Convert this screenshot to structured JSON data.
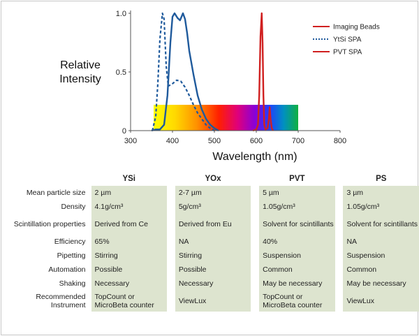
{
  "chart_data": {
    "type": "line",
    "xlabel": "Wavelength (nm)",
    "ylabel": [
      "Relative",
      "Intensity"
    ],
    "xlim": [
      300,
      800
    ],
    "ylim": [
      0,
      1.0
    ],
    "xticks": [
      "300",
      "400",
      "500",
      "600",
      "700",
      "800"
    ],
    "yticks": [
      "0",
      "0.5",
      "1.0"
    ],
    "legend_position": "top-right",
    "legend": [
      {
        "label": "Imaging Beads",
        "color": "#d02020",
        "style": "solid"
      },
      {
        "label": "YtSi SPA",
        "color": "#1f5a9c",
        "style": "dotted"
      },
      {
        "label": "PVT SPA",
        "color": "#d02020",
        "style": "solid"
      }
    ],
    "spectrum_band": {
      "x_range": [
        355,
        700
      ],
      "y_range": [
        0,
        0.22
      ]
    },
    "series": [
      {
        "color": "#d02020",
        "style": "solid",
        "points": [
          [
            592,
            0
          ],
          [
            600,
            0.01
          ],
          [
            604,
            0.05
          ],
          [
            607,
            0.3
          ],
          [
            610,
            0.8
          ],
          [
            613,
            1.0
          ],
          [
            615,
            0.75
          ],
          [
            617,
            0.3
          ],
          [
            619,
            0.05
          ],
          [
            622,
            0.01
          ],
          [
            627,
            0.02
          ],
          [
            630,
            0.1
          ],
          [
            632,
            0.2
          ],
          [
            634,
            0.1
          ],
          [
            637,
            0.02
          ],
          [
            640,
            0
          ]
        ]
      },
      {
        "color": "#1f5a9c",
        "style": "dashed",
        "points": [
          [
            352,
            0
          ],
          [
            360,
            0.12
          ],
          [
            365,
            0.4
          ],
          [
            370,
            0.78
          ],
          [
            376,
            1.0
          ],
          [
            380,
            0.95
          ],
          [
            385,
            0.55
          ],
          [
            390,
            0.38
          ],
          [
            400,
            0.4
          ],
          [
            410,
            0.43
          ],
          [
            420,
            0.42
          ],
          [
            430,
            0.37
          ],
          [
            440,
            0.3
          ],
          [
            450,
            0.22
          ],
          [
            460,
            0.15
          ],
          [
            470,
            0.1
          ],
          [
            480,
            0.05
          ],
          [
            490,
            0.02
          ],
          [
            500,
            0
          ]
        ]
      },
      {
        "color": "#1f5a9c",
        "style": "solid",
        "points": [
          [
            350,
            0
          ],
          [
            360,
            0.01
          ],
          [
            370,
            0.01
          ],
          [
            380,
            0.05
          ],
          [
            388,
            0.3
          ],
          [
            395,
            0.75
          ],
          [
            400,
            0.97
          ],
          [
            405,
            1.0
          ],
          [
            412,
            0.96
          ],
          [
            418,
            0.94
          ],
          [
            425,
            1.0
          ],
          [
            430,
            0.95
          ],
          [
            435,
            0.83
          ],
          [
            440,
            0.68
          ],
          [
            450,
            0.48
          ],
          [
            460,
            0.3
          ],
          [
            470,
            0.18
          ],
          [
            480,
            0.1
          ],
          [
            490,
            0.05
          ],
          [
            500,
            0.02
          ],
          [
            510,
            0
          ]
        ]
      }
    ]
  },
  "table": {
    "headers": [
      "",
      "YSi",
      "YOx",
      "PVT",
      "PS"
    ],
    "rows": [
      {
        "label": "Mean particle size",
        "values": [
          "2 µm",
          "2-7 µm",
          "5 µm",
          "3 µm"
        ]
      },
      {
        "label": "Density",
        "values": [
          "4.1g/cm³",
          "5g/cm³",
          "1.05g/cm³",
          "1.05g/cm³"
        ]
      },
      {
        "label": "Scintillation properties",
        "values": [
          "Derived from Ce",
          "Derived from Eu",
          "Solvent for scintillants",
          "Solvent for scintillants"
        ]
      },
      {
        "label": "Efficiency",
        "values": [
          "65%",
          "NA",
          "40%",
          "NA"
        ]
      },
      {
        "label": "Pipetting",
        "values": [
          "Stirring",
          "Stirring",
          "Suspension",
          "Suspension"
        ]
      },
      {
        "label": "Automation",
        "values": [
          "Possible",
          "Possible",
          "Common",
          "Common"
        ]
      },
      {
        "label": "Shaking",
        "values": [
          "Necessary",
          "Necessary",
          "May be necessary",
          "May be necessary"
        ]
      },
      {
        "label": "Recommended Instrument",
        "values": [
          "TopCount or MicroBeta counter",
          "ViewLux",
          "TopCount or MicroBeta counter",
          "ViewLux"
        ]
      }
    ]
  }
}
